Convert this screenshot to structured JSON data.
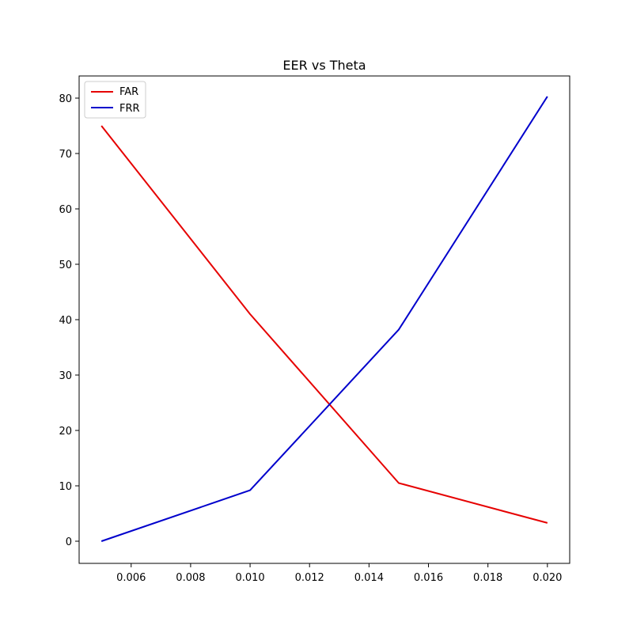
{
  "chart_data": {
    "type": "line",
    "title": "EER vs Theta",
    "xlabel": "",
    "ylabel": "",
    "x": [
      0.005,
      0.01,
      0.015,
      0.02
    ],
    "xlim": [
      0.00425,
      0.02075
    ],
    "ylim": [
      -4,
      84
    ],
    "x_ticks": [
      "0.006",
      "0.008",
      "0.010",
      "0.012",
      "0.014",
      "0.016",
      "0.018",
      "0.020"
    ],
    "y_ticks": [
      "0",
      "10",
      "20",
      "30",
      "40",
      "50",
      "60",
      "70",
      "80"
    ],
    "grid": false,
    "legend_position": "top-left",
    "series": [
      {
        "name": "FAR",
        "color": "#e60000",
        "values": [
          75.0,
          41.0,
          10.5,
          3.3
        ]
      },
      {
        "name": "FRR",
        "color": "#0000cc",
        "values": [
          0.0,
          9.2,
          38.2,
          80.3
        ]
      }
    ]
  }
}
